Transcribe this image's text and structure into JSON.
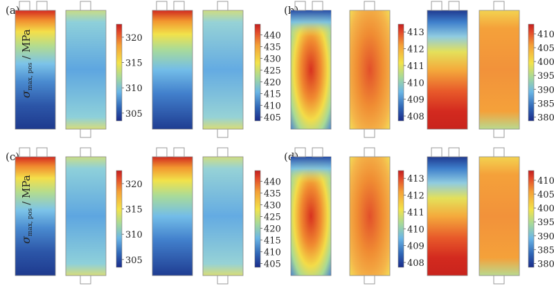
{
  "panels": [
    {
      "label": "(a)",
      "ticks_left": [
        "320",
        "315",
        "310",
        "305"
      ],
      "ticks_right": [
        "440",
        "435",
        "430",
        "425",
        "420",
        "415",
        "410",
        "405"
      ]
    },
    {
      "label": "(b)",
      "ticks_left": [
        "413",
        "412",
        "411",
        "410",
        "409",
        "408"
      ],
      "ticks_right": [
        "410",
        "405",
        "400",
        "395",
        "390",
        "385",
        "380"
      ]
    },
    {
      "label": "(c)",
      "ticks_left": [
        "320",
        "315",
        "310",
        "305"
      ],
      "ticks_right": [
        "440",
        "435",
        "430",
        "425",
        "420",
        "415",
        "410",
        "405"
      ]
    },
    {
      "label": "(d)",
      "ticks_left": [
        "413",
        "412",
        "411",
        "410",
        "409",
        "408"
      ],
      "ticks_right": [
        "410",
        "405",
        "400",
        "395",
        "390",
        "385",
        "380"
      ]
    }
  ],
  "ylabel": {
    "symbol": "σ",
    "subscript": "max, pos",
    "unit": " / MPa"
  },
  "colormap": [
    "#1b2c8a",
    "#2f66b6",
    "#6bb6e6",
    "#a6d99a",
    "#f3e34a",
    "#f4a137",
    "#e2482a",
    "#c21f1f"
  ]
}
